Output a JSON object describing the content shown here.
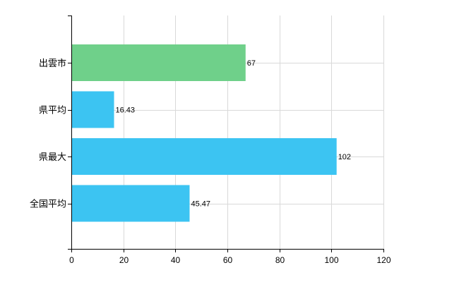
{
  "chart_data": {
    "type": "bar",
    "orientation": "horizontal",
    "categories": [
      "出雲市",
      "県平均",
      "県最大",
      "全国平均"
    ],
    "values": [
      67,
      16.43,
      102,
      45.47
    ],
    "value_labels": [
      "67",
      "16.43",
      "102",
      "45.47"
    ],
    "bar_colors": [
      "#6fd08a",
      "#3cc4f2",
      "#3cc4f2",
      "#3cc4f2"
    ],
    "title": "",
    "xlabel": "",
    "ylabel": "",
    "xlim": [
      0,
      120
    ],
    "x_ticks": [
      "0",
      "20",
      "40",
      "60",
      "80",
      "100",
      "120"
    ],
    "grid": true,
    "legend": "none"
  }
}
